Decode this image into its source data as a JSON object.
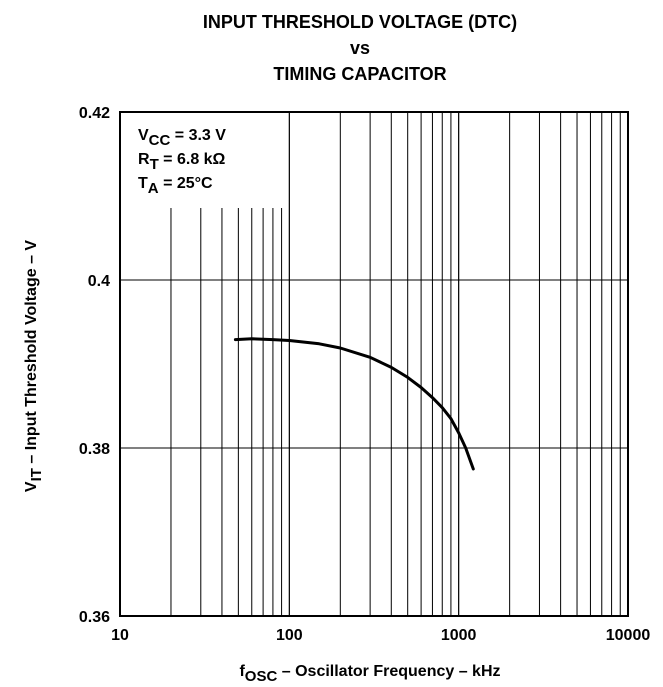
{
  "chart_data": {
    "type": "line",
    "title_lines": [
      "INPUT THRESHOLD VOLTAGE (DTC)",
      "vs",
      "TIMING CAPACITOR"
    ],
    "xlabel": {
      "main": "f",
      "sub": "OSC",
      "rest": " – Oscillator Frequency – kHz"
    },
    "ylabel": {
      "main": "V",
      "sub": "IT",
      "rest": " – Input Threshold Voltage – V"
    },
    "x_scale": "log",
    "xlim": [
      10,
      10000
    ],
    "ylim": [
      0.36,
      0.42
    ],
    "x_ticks": [
      10,
      100,
      1000,
      10000
    ],
    "x_tick_labels": [
      "10",
      "100",
      "1000",
      "10000"
    ],
    "y_ticks": [
      0.36,
      0.38,
      0.4,
      0.42
    ],
    "y_tick_labels": [
      "0.36",
      "0.38",
      "0.4",
      "0.42"
    ],
    "grid": true,
    "conditions": [
      {
        "main": "V",
        "sub": "CC",
        "rest": " = 3.3 V"
      },
      {
        "main": "R",
        "sub": "T",
        "rest": " = 6.8 kΩ"
      },
      {
        "main": "T",
        "sub": "A",
        "rest": " = 25°C"
      }
    ],
    "series": [
      {
        "x": [
          48,
          60,
          80,
          100,
          150,
          200,
          300,
          400,
          500,
          600,
          700,
          800,
          900,
          1000,
          1100,
          1220
        ],
        "y": [
          0.3929,
          0.393,
          0.3929,
          0.3928,
          0.3924,
          0.3919,
          0.3908,
          0.3896,
          0.3884,
          0.3872,
          0.386,
          0.3848,
          0.3835,
          0.3818,
          0.38,
          0.3775
        ]
      }
    ]
  }
}
